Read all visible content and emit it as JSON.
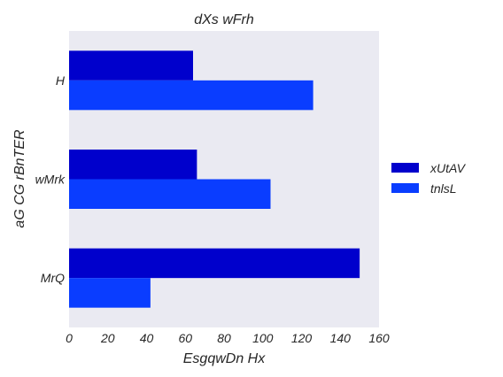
{
  "chart_data": {
    "type": "bar",
    "orientation": "horizontal",
    "title": "dXs wFrh",
    "xlabel": "EsgqwDn Hx",
    "ylabel": "aG CG rBnTER",
    "categories": [
      "H",
      "wMrk",
      "MrQ"
    ],
    "series": [
      {
        "name": "xUtAV",
        "color": "#0000cc",
        "values": [
          64,
          66,
          150
        ]
      },
      {
        "name": "tnlsL",
        "color": "#0a3dff",
        "values": [
          126,
          104,
          42
        ]
      }
    ],
    "xlim": [
      0,
      160
    ],
    "xticks": [
      "0",
      "20",
      "40",
      "60",
      "80",
      "100",
      "120",
      "140",
      "160"
    ],
    "grid": false,
    "legend_position": "right",
    "background_color": "#eaeaf2"
  }
}
